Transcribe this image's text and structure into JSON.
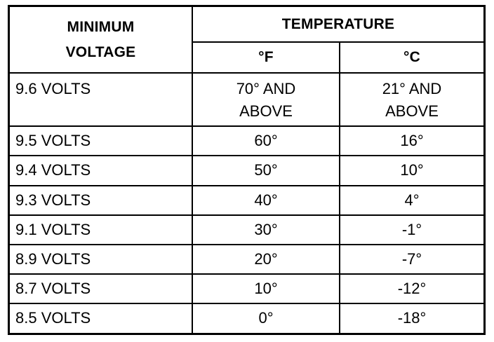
{
  "header": {
    "min_voltage_line1": "MINIMUM",
    "min_voltage_line2": "VOLTAGE",
    "temperature": "TEMPERATURE",
    "unit_f": "°F",
    "unit_c": "°C"
  },
  "rows": [
    {
      "voltage": "9.6 VOLTS",
      "f_line1": "70° AND",
      "f_line2": "ABOVE",
      "c_line1": "21° AND",
      "c_line2": "ABOVE"
    },
    {
      "voltage": "9.5 VOLTS",
      "f": "60°",
      "c": "16°"
    },
    {
      "voltage": "9.4 VOLTS",
      "f": "50°",
      "c": "10°"
    },
    {
      "voltage": "9.3 VOLTS",
      "f": "40°",
      "c": "4°"
    },
    {
      "voltage": "9.1 VOLTS",
      "f": "30°",
      "c": "-1°"
    },
    {
      "voltage": "8.9 VOLTS",
      "f": "20°",
      "c": "-7°"
    },
    {
      "voltage": "8.7 VOLTS",
      "f": "10°",
      "c": "-12°"
    },
    {
      "voltage": "8.5 VOLTS",
      "f": "0°",
      "c": "-18°"
    }
  ]
}
